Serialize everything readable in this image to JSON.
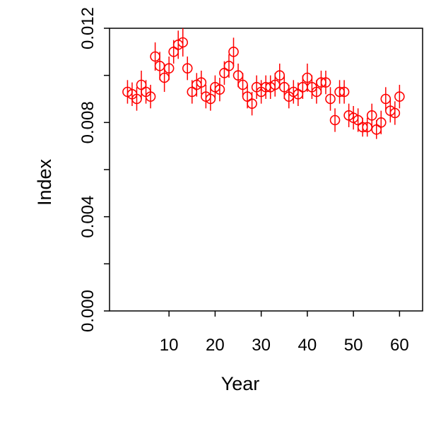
{
  "chart_data": {
    "type": "scatter",
    "title": "",
    "xlabel": "Year",
    "ylabel": "Index",
    "xlim": [
      -2.9,
      65.0
    ],
    "ylim": [
      0.0,
      0.012
    ],
    "x_ticks": [
      10,
      20,
      30,
      40,
      50,
      60
    ],
    "x_tick_labels": [
      "10",
      "20",
      "30",
      "40",
      "50",
      "60"
    ],
    "y_ticks": [
      0.0,
      0.002,
      0.004,
      0.006,
      0.008,
      0.01,
      0.012
    ],
    "y_tick_labels": [
      "0.000",
      "",
      "0.004",
      "",
      "0.008",
      "",
      "0.012"
    ],
    "grid": false,
    "legend": "none",
    "marker": "open-circle",
    "color": "#ff0000",
    "series": [
      {
        "x": [
          1,
          2,
          3,
          4,
          5,
          6,
          7,
          8,
          9,
          10,
          11,
          12,
          13,
          14,
          15,
          16,
          17,
          18,
          19,
          20,
          21,
          22,
          23,
          24,
          25,
          26,
          27,
          28,
          29,
          30,
          31,
          32,
          33,
          34,
          35,
          36,
          37,
          38,
          39,
          40,
          41,
          42,
          43,
          44,
          45,
          46,
          47,
          48,
          49,
          50,
          51,
          52,
          53,
          54,
          55,
          56,
          57,
          58,
          59,
          60
        ],
        "y": [
          0.0093,
          0.0092,
          0.009,
          0.0096,
          0.0093,
          0.0091,
          0.0108,
          0.0104,
          0.0099,
          0.0103,
          0.011,
          0.0113,
          0.0114,
          0.0103,
          0.0093,
          0.0096,
          0.0097,
          0.0091,
          0.009,
          0.0095,
          0.0094,
          0.0101,
          0.0104,
          0.011,
          0.01,
          0.0096,
          0.0091,
          0.0088,
          0.0095,
          0.0093,
          0.0095,
          0.0095,
          0.0096,
          0.01,
          0.0095,
          0.0091,
          0.0093,
          0.0092,
          0.0095,
          0.0099,
          0.0095,
          0.0093,
          0.0097,
          0.0097,
          0.009,
          0.0081,
          0.0093,
          0.0093,
          0.0083,
          0.0082,
          0.0081,
          0.0078,
          0.0078,
          0.0083,
          0.0077,
          0.008,
          0.009,
          0.0085,
          0.0084,
          0.0091
        ],
        "err": [
          0.0005,
          0.0005,
          0.0005,
          0.0006,
          0.0005,
          0.0005,
          0.0006,
          0.0006,
          0.0006,
          0.0005,
          0.0005,
          0.0006,
          0.0006,
          0.0005,
          0.0005,
          0.0005,
          0.0005,
          0.0005,
          0.0005,
          0.0005,
          0.0005,
          0.0005,
          0.0005,
          0.0006,
          0.0005,
          0.0005,
          0.0005,
          0.0005,
          0.0005,
          0.0005,
          0.0005,
          0.0005,
          0.0005,
          0.0005,
          0.0005,
          0.0005,
          0.0005,
          0.0005,
          0.0005,
          0.0006,
          0.0005,
          0.0005,
          0.0005,
          0.0005,
          0.0005,
          0.0005,
          0.0005,
          0.0005,
          0.0005,
          0.0005,
          0.0005,
          0.0004,
          0.0004,
          0.0005,
          0.0004,
          0.0005,
          0.0005,
          0.0005,
          0.0005,
          0.0005
        ]
      }
    ]
  }
}
